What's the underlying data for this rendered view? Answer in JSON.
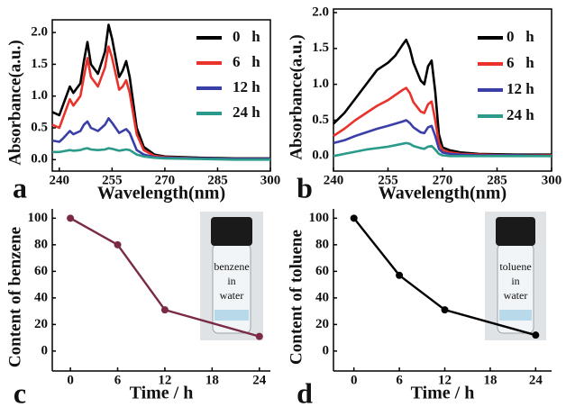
{
  "chart_data": [
    {
      "type": "line",
      "label": "a",
      "xlabel": "Wavelength(nm)",
      "ylabel": "Absorbance(a.u.)",
      "x": [
        238,
        240,
        241,
        243,
        244,
        246,
        247,
        248,
        249,
        251,
        253,
        254,
        255,
        257,
        258,
        259,
        260,
        262,
        264,
        267,
        270,
        280,
        290,
        300
      ],
      "series": [
        {
          "name": "0   h",
          "color": "#000000",
          "values": [
            0.75,
            0.7,
            0.85,
            1.15,
            1.05,
            1.2,
            1.55,
            1.85,
            1.5,
            1.35,
            1.7,
            2.12,
            1.9,
            1.3,
            1.4,
            1.55,
            1.3,
            0.5,
            0.2,
            0.08,
            0.05,
            0.03,
            0.02,
            0.02
          ]
        },
        {
          "name": "6   h",
          "color": "#e8322b",
          "values": [
            0.55,
            0.5,
            0.65,
            0.95,
            0.85,
            1.0,
            1.3,
            1.6,
            1.3,
            1.15,
            1.45,
            1.78,
            1.6,
            1.1,
            1.15,
            1.25,
            1.05,
            0.4,
            0.15,
            0.06,
            0.04,
            0.02,
            0.01,
            0.01
          ]
        },
        {
          "name": "12 h",
          "color": "#3a3fa8",
          "values": [
            0.3,
            0.28,
            0.33,
            0.45,
            0.4,
            0.45,
            0.55,
            0.6,
            0.5,
            0.45,
            0.55,
            0.65,
            0.58,
            0.42,
            0.45,
            0.48,
            0.42,
            0.15,
            0.08,
            0.04,
            0.03,
            0.02,
            0.01,
            0.01
          ]
        },
        {
          "name": "24 h",
          "color": "#2a9a8a",
          "values": [
            0.12,
            0.12,
            0.13,
            0.15,
            0.14,
            0.15,
            0.17,
            0.18,
            0.16,
            0.15,
            0.16,
            0.18,
            0.17,
            0.14,
            0.15,
            0.16,
            0.15,
            0.08,
            0.05,
            0.03,
            0.02,
            0.01,
            0,
            0
          ]
        }
      ],
      "xlim": [
        238,
        300
      ],
      "xticks": [
        240,
        255,
        270,
        285,
        300
      ],
      "ylim": [
        -0.18,
        2.2
      ],
      "yticks": [
        {
          "value": 0,
          "label": "0.0"
        },
        {
          "value": 0.5,
          "label": "0.5"
        },
        {
          "value": 1,
          "label": "1.0"
        },
        {
          "value": 1.5,
          "label": "1.5"
        },
        {
          "value": 2,
          "label": "2.0"
        }
      ]
    },
    {
      "type": "line",
      "label": "b",
      "xlabel": "Wavelength(nm)",
      "ylabel": "Absorbance(a.u.)",
      "x": [
        240,
        243,
        246,
        249,
        252,
        255,
        257,
        259,
        260,
        261,
        262,
        264,
        265,
        266,
        267,
        268,
        269,
        270,
        272,
        275,
        280,
        290,
        300
      ],
      "series": [
        {
          "name": "0   h",
          "color": "#000000",
          "values": [
            0.45,
            0.6,
            0.8,
            1.0,
            1.2,
            1.3,
            1.4,
            1.55,
            1.62,
            1.5,
            1.3,
            1.05,
            1.0,
            1.25,
            1.33,
            0.9,
            0.3,
            0.12,
            0.08,
            0.05,
            0.03,
            0.02,
            0.02
          ]
        },
        {
          "name": "6   h",
          "color": "#e8322b",
          "values": [
            0.28,
            0.38,
            0.5,
            0.6,
            0.7,
            0.78,
            0.85,
            0.92,
            0.95,
            0.88,
            0.75,
            0.62,
            0.6,
            0.72,
            0.76,
            0.5,
            0.18,
            0.08,
            0.05,
            0.03,
            0.02,
            0.01,
            0.01
          ]
        },
        {
          "name": "12 h",
          "color": "#3a3fa8",
          "values": [
            0.18,
            0.22,
            0.28,
            0.33,
            0.38,
            0.42,
            0.45,
            0.48,
            0.5,
            0.46,
            0.4,
            0.33,
            0.32,
            0.4,
            0.42,
            0.28,
            0.1,
            0.05,
            0.03,
            0.02,
            0.01,
            0.01,
            0
          ]
        },
        {
          "name": "24 h",
          "color": "#2a9a8a",
          "values": [
            0,
            0.03,
            0.06,
            0.09,
            0.11,
            0.13,
            0.15,
            0.17,
            0.18,
            0.17,
            0.14,
            0.11,
            0.1,
            0.13,
            0.14,
            0.09,
            0.03,
            0.01,
            0,
            0,
            0,
            0,
            0
          ]
        }
      ],
      "xlim": [
        240,
        300
      ],
      "xticks": [
        240,
        255,
        270,
        285,
        300
      ],
      "ylim": [
        -0.21,
        2.05
      ],
      "yticks": [
        {
          "value": 0,
          "label": "0.0"
        },
        {
          "value": 0.5,
          "label": "0.5"
        },
        {
          "value": 1,
          "label": "1.0"
        },
        {
          "value": 1.5,
          "label": "1.5"
        },
        {
          "value": 2,
          "label": "2.0"
        }
      ]
    },
    {
      "type": "line-markers",
      "label": "c",
      "xlabel": "Time / h",
      "ylabel": "Content of benzene",
      "inset_text": [
        "benzene",
        "in",
        "water"
      ],
      "x": [
        0,
        6,
        12,
        24
      ],
      "series": [
        {
          "color": "#7a2a45",
          "values": [
            100,
            80,
            31,
            11
          ]
        }
      ],
      "xlim": [
        -2.3,
        25.4
      ],
      "xticks": [
        0,
        6,
        12,
        18,
        24
      ],
      "ylim": [
        -15,
        107
      ],
      "yticks": [
        0,
        20,
        40,
        60,
        80,
        100
      ]
    },
    {
      "type": "line-markers",
      "label": "d",
      "xlabel": "Time / h",
      "ylabel": "Content of toluene",
      "inset_text": [
        "toluene",
        "in",
        "water"
      ],
      "x": [
        0,
        6,
        12,
        24
      ],
      "series": [
        {
          "color": "#000000",
          "values": [
            100,
            57,
            31,
            12
          ]
        }
      ],
      "xlim": [
        -2.7,
        26.1
      ],
      "xticks": [
        0,
        6,
        12,
        18,
        24
      ],
      "ylim": [
        -15,
        107
      ],
      "yticks": [
        0,
        20,
        40,
        60,
        80,
        100
      ]
    }
  ]
}
